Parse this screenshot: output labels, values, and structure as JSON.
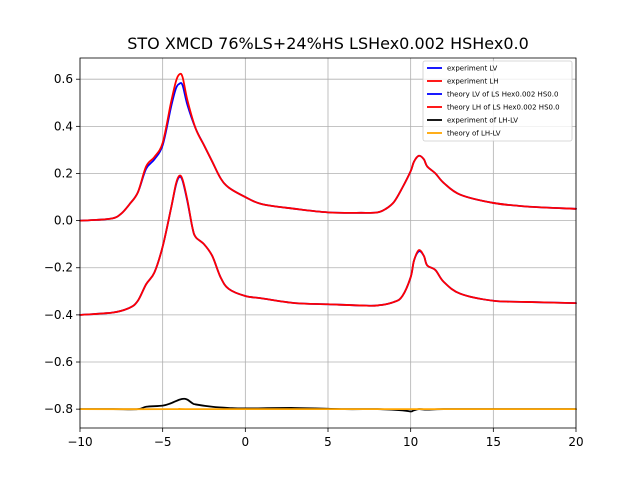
{
  "chart_data": {
    "type": "line",
    "title": "STO XMCD 76%LS+24%HS LSHex0.002 HSHex0.0",
    "xlabel": "",
    "ylabel": "",
    "xlim": [
      -10,
      20
    ],
    "ylim": [
      -0.88,
      0.69
    ],
    "grid": true,
    "legend_position": "top-right",
    "x_ticks": [
      {
        "value": -10,
        "label": "−10"
      },
      {
        "value": -5,
        "label": "−5"
      },
      {
        "value": 0,
        "label": "0"
      },
      {
        "value": 5,
        "label": "5"
      },
      {
        "value": 10,
        "label": "10"
      },
      {
        "value": 15,
        "label": "15"
      },
      {
        "value": 20,
        "label": "20"
      }
    ],
    "y_ticks": [
      {
        "value": -0.8,
        "label": "−0.8"
      },
      {
        "value": -0.6,
        "label": "−0.6"
      },
      {
        "value": -0.4,
        "label": "−0.4"
      },
      {
        "value": -0.2,
        "label": "−0.2"
      },
      {
        "value": 0.0,
        "label": "0.0"
      },
      {
        "value": 0.2,
        "label": "0.2"
      },
      {
        "value": 0.4,
        "label": "0.4"
      },
      {
        "value": 0.6,
        "label": "0.6"
      }
    ],
    "series": [
      {
        "name": "experiment LV",
        "color": "#0000ff",
        "x": [
          -10,
          -9,
          -8,
          -7.5,
          -7,
          -6.5,
          -6,
          -5.5,
          -5,
          -4.5,
          -4.2,
          -4,
          -3.8,
          -3.5,
          -3,
          -2.5,
          -2,
          -1.5,
          -1,
          0,
          1,
          3,
          5,
          7,
          8,
          8.5,
          9,
          9.5,
          10,
          10.2,
          10.5,
          10.8,
          11,
          11.5,
          12,
          13,
          15,
          17,
          20
        ],
        "y": [
          0.0,
          0.003,
          0.01,
          0.03,
          0.07,
          0.12,
          0.22,
          0.26,
          0.32,
          0.48,
          0.56,
          0.58,
          0.575,
          0.49,
          0.39,
          0.32,
          0.25,
          0.18,
          0.14,
          0.1,
          0.07,
          0.05,
          0.035,
          0.033,
          0.035,
          0.05,
          0.08,
          0.14,
          0.21,
          0.25,
          0.275,
          0.26,
          0.23,
          0.2,
          0.16,
          0.11,
          0.075,
          0.06,
          0.05
        ]
      },
      {
        "name": "experiment LH",
        "color": "#ff0000",
        "x": [
          -10,
          -9,
          -8,
          -7.5,
          -7,
          -6.5,
          -6,
          -5.5,
          -5,
          -4.5,
          -4.2,
          -4,
          -3.8,
          -3.5,
          -3,
          -2.5,
          -2,
          -1.5,
          -1,
          0,
          1,
          3,
          5,
          7,
          8,
          8.5,
          9,
          9.5,
          10,
          10.2,
          10.5,
          10.8,
          11,
          11.5,
          12,
          13,
          15,
          17,
          20
        ],
        "y": [
          0.0,
          0.003,
          0.01,
          0.03,
          0.07,
          0.12,
          0.23,
          0.27,
          0.33,
          0.5,
          0.59,
          0.62,
          0.61,
          0.51,
          0.39,
          0.32,
          0.25,
          0.18,
          0.14,
          0.1,
          0.07,
          0.05,
          0.035,
          0.033,
          0.035,
          0.05,
          0.08,
          0.14,
          0.21,
          0.25,
          0.275,
          0.26,
          0.23,
          0.2,
          0.16,
          0.11,
          0.075,
          0.06,
          0.05
        ]
      },
      {
        "name": "theory LV of LS Hex0.002 HS0.0",
        "color": "#0000ff",
        "x": [
          -10,
          -8,
          -7,
          -6.5,
          -6,
          -5.5,
          -5,
          -4.5,
          -4.2,
          -4,
          -3.8,
          -3.5,
          -3.2,
          -3,
          -2.5,
          -2,
          -1.5,
          -1,
          0,
          1,
          3,
          5,
          7,
          8,
          9,
          9.5,
          10,
          10.2,
          10.5,
          10.8,
          11,
          11.5,
          12,
          13,
          15,
          17,
          20
        ],
        "y": [
          -0.4,
          -0.39,
          -0.37,
          -0.34,
          -0.27,
          -0.22,
          -0.11,
          0.05,
          0.15,
          0.185,
          0.17,
          0.08,
          -0.03,
          -0.07,
          -0.1,
          -0.15,
          -0.24,
          -0.29,
          -0.32,
          -0.33,
          -0.35,
          -0.355,
          -0.36,
          -0.36,
          -0.345,
          -0.32,
          -0.24,
          -0.17,
          -0.13,
          -0.15,
          -0.19,
          -0.21,
          -0.26,
          -0.31,
          -0.34,
          -0.345,
          -0.35
        ]
      },
      {
        "name": "theory LH of LS Hex0.002 HS0.0",
        "color": "#ff0000",
        "x": [
          -10,
          -8,
          -7,
          -6.5,
          -6,
          -5.5,
          -5,
          -4.5,
          -4.2,
          -4,
          -3.8,
          -3.5,
          -3.2,
          -3,
          -2.5,
          -2,
          -1.5,
          -1,
          0,
          1,
          3,
          5,
          7,
          8,
          9,
          9.5,
          10,
          10.2,
          10.5,
          10.8,
          11,
          11.5,
          12,
          13,
          15,
          17,
          20
        ],
        "y": [
          -0.4,
          -0.39,
          -0.37,
          -0.34,
          -0.27,
          -0.22,
          -0.11,
          0.05,
          0.155,
          0.19,
          0.175,
          0.085,
          -0.03,
          -0.07,
          -0.1,
          -0.15,
          -0.24,
          -0.29,
          -0.32,
          -0.33,
          -0.35,
          -0.355,
          -0.36,
          -0.36,
          -0.345,
          -0.32,
          -0.24,
          -0.17,
          -0.125,
          -0.15,
          -0.19,
          -0.21,
          -0.26,
          -0.31,
          -0.34,
          -0.345,
          -0.35
        ]
      },
      {
        "name": "experiment of LH-LV",
        "color": "#000000",
        "x": [
          -10,
          -8,
          -6.5,
          -6,
          -5,
          -4.5,
          -4,
          -3.7,
          -3.5,
          -3.2,
          -3,
          -2,
          -1,
          0,
          3,
          6,
          8,
          9.5,
          10,
          10.2,
          10.5,
          11,
          12,
          15,
          20
        ],
        "y": [
          -0.8,
          -0.8,
          -0.8,
          -0.79,
          -0.785,
          -0.775,
          -0.76,
          -0.756,
          -0.76,
          -0.775,
          -0.78,
          -0.79,
          -0.795,
          -0.797,
          -0.795,
          -0.8,
          -0.8,
          -0.805,
          -0.81,
          -0.805,
          -0.8,
          -0.802,
          -0.8,
          -0.8,
          -0.8
        ]
      },
      {
        "name": "theory of LH-LV",
        "color": "#ffa500",
        "x": [
          -10,
          -4.5,
          -4,
          -3.5,
          0,
          10,
          20
        ],
        "y": [
          -0.8,
          -0.8,
          -0.799,
          -0.8,
          -0.8,
          -0.8,
          -0.8
        ]
      }
    ]
  }
}
